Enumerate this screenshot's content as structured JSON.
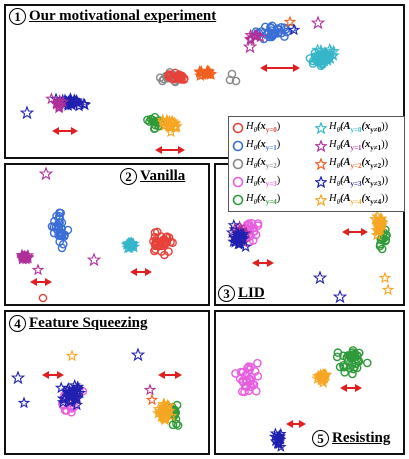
{
  "panels": [
    {
      "num": "1",
      "title": "Our motivational experiment"
    },
    {
      "num": "2",
      "title": "Vanilla"
    },
    {
      "num": "3",
      "title": "LID"
    },
    {
      "num": "4",
      "title": "Feature Squeezing"
    },
    {
      "num": "5",
      "title": "Resisting"
    }
  ],
  "legend": {
    "items": [
      {
        "marker": "circle",
        "color": "#e8413a",
        "fn": "H",
        "sub": "θ̂",
        "arg": "(x",
        "argsub": "y=0",
        "close": ")"
      },
      {
        "marker": "star",
        "color": "#36b6c8",
        "fn": "H",
        "sub": "θ̂",
        "arg": "(A",
        "argsub": "y=0",
        "inner": "(x",
        "innersub": "y≠0",
        "close": "))"
      },
      {
        "marker": "circle",
        "color": "#3b6fd6",
        "fn": "H",
        "sub": "θ̂",
        "arg": "(x",
        "argsub": "y=1",
        "close": ")"
      },
      {
        "marker": "star",
        "color": "#b0309a",
        "fn": "H",
        "sub": "θ̂",
        "arg": "(A",
        "argsub": "y=1",
        "inner": "(x",
        "innersub": "y≠1",
        "close": "))"
      },
      {
        "marker": "circle",
        "color": "#888888",
        "fn": "H",
        "sub": "θ̂",
        "arg": "(x",
        "argsub": "y=2",
        "close": ")"
      },
      {
        "marker": "star",
        "color": "#f0601e",
        "fn": "H",
        "sub": "θ̂",
        "arg": "(A",
        "argsub": "y=2",
        "inner": "(x",
        "innersub": "y≠2",
        "close": "))"
      },
      {
        "marker": "circle",
        "color": "#e85ee0",
        "fn": "H",
        "sub": "θ̂",
        "arg": "(x",
        "argsub": "y=3",
        "close": ")"
      },
      {
        "marker": "star",
        "color": "#2020b0",
        "fn": "H",
        "sub": "θ̂",
        "arg": "(A",
        "argsub": "y=3",
        "inner": "(x",
        "innersub": "y≠3",
        "close": "))"
      },
      {
        "marker": "circle",
        "color": "#2f9a3a",
        "fn": "H",
        "sub": "θ̂",
        "arg": "(x",
        "argsub": "y=4",
        "close": ")"
      },
      {
        "marker": "star",
        "color": "#f5a623",
        "fn": "H",
        "sub": "θ̂",
        "arg": "(A",
        "argsub": "y=4",
        "inner": "(x",
        "innersub": "y≠4",
        "close": "))"
      }
    ]
  },
  "colors": {
    "c0": "#e8413a",
    "a0": "#36b6c8",
    "c1": "#3b6fd6",
    "a1": "#b0309a",
    "c2": "#888888",
    "a2": "#f0601e",
    "c3": "#e85ee0",
    "a3": "#2020b0",
    "c4": "#2f9a3a",
    "a4": "#f5a623",
    "arrow": "#e02020"
  }
}
